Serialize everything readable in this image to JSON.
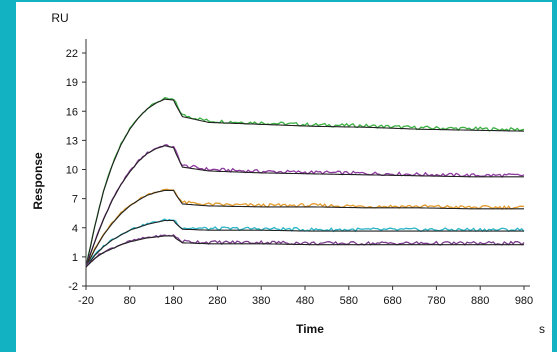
{
  "chart_data": {
    "type": "line",
    "title": "",
    "xlabel": "Time",
    "ylabel": "Response",
    "x_unit": "s",
    "y_unit": "RU",
    "xlim": [
      -20,
      980
    ],
    "ylim": [
      -2,
      22
    ],
    "x_ticks": [
      "-20",
      "80",
      "180",
      "280",
      "380",
      "480",
      "580",
      "680",
      "780",
      "880",
      "980"
    ],
    "y_ticks": [
      "-2",
      "1",
      "4",
      "7",
      "10",
      "13",
      "16",
      "19",
      "22"
    ],
    "grid": false,
    "series": [
      {
        "color": "#3cb043",
        "fit_color": "#222222",
        "x": [
          -20,
          0,
          20,
          40,
          60,
          80,
          100,
          120,
          140,
          160,
          180,
          200,
          260,
          380,
          500,
          620,
          740,
          860,
          980
        ],
        "values": [
          0,
          4.2,
          7.8,
          10.5,
          12.6,
          14.2,
          15.4,
          16.3,
          16.9,
          17.3,
          17.2,
          15.6,
          15.0,
          14.8,
          14.6,
          14.5,
          14.3,
          14.2,
          14.1
        ]
      },
      {
        "color": "#8e3aa0",
        "fit_color": "#222222",
        "x": [
          -20,
          0,
          20,
          40,
          60,
          80,
          100,
          120,
          140,
          160,
          180,
          200,
          260,
          380,
          500,
          620,
          740,
          860,
          980
        ],
        "values": [
          0,
          2.6,
          4.9,
          6.9,
          8.5,
          9.8,
          10.9,
          11.7,
          12.2,
          12.5,
          12.3,
          10.4,
          10.0,
          9.8,
          9.7,
          9.6,
          9.5,
          9.4,
          9.4
        ]
      },
      {
        "color": "#e39b2c",
        "fit_color": "#222222",
        "x": [
          -20,
          0,
          20,
          40,
          60,
          80,
          100,
          120,
          140,
          160,
          180,
          200,
          260,
          380,
          500,
          620,
          740,
          860,
          980
        ],
        "values": [
          0,
          1.8,
          3.3,
          4.5,
          5.5,
          6.3,
          6.9,
          7.4,
          7.7,
          7.9,
          7.9,
          6.6,
          6.4,
          6.3,
          6.3,
          6.2,
          6.2,
          6.1,
          6.1
        ]
      },
      {
        "color": "#2bb5c6",
        "fit_color": "#222222",
        "x": [
          -20,
          0,
          20,
          40,
          60,
          80,
          100,
          120,
          140,
          160,
          180,
          200,
          260,
          380,
          500,
          620,
          740,
          860,
          980
        ],
        "values": [
          0,
          1.2,
          2.1,
          2.8,
          3.3,
          3.8,
          4.1,
          4.4,
          4.6,
          4.8,
          4.8,
          4.0,
          3.9,
          3.9,
          3.8,
          3.8,
          3.8,
          3.8,
          3.8
        ]
      },
      {
        "color": "#7a3d8c",
        "fit_color": "#222222",
        "x": [
          -20,
          0,
          20,
          40,
          60,
          80,
          100,
          120,
          140,
          160,
          180,
          200,
          260,
          380,
          500,
          620,
          740,
          860,
          980
        ],
        "values": [
          0,
          0.9,
          1.5,
          1.9,
          2.3,
          2.6,
          2.8,
          3.0,
          3.1,
          3.2,
          3.2,
          2.6,
          2.5,
          2.5,
          2.4,
          2.4,
          2.4,
          2.4,
          2.4
        ]
      }
    ]
  }
}
